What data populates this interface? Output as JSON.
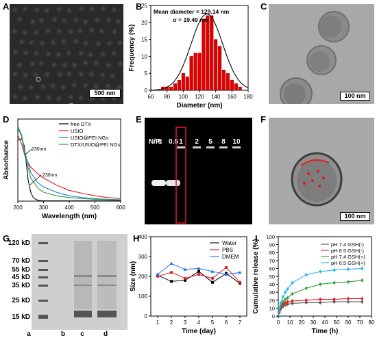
{
  "panels": {
    "A": {
      "label": "A",
      "scalebar": "500 nm"
    },
    "B": {
      "label": "B",
      "annotation_line1": "Mean diameter = 129.14 nm",
      "annotation_line2": "σ = 19.49 nm"
    },
    "C": {
      "label": "C",
      "scalebar": "100 nm"
    },
    "D": {
      "label": "D",
      "annot1": "230nm",
      "annot2": "230nm"
    },
    "E": {
      "label": "E",
      "np_label": "N/P:",
      "lanes": [
        "0",
        "0.5",
        "1",
        "2",
        "5",
        "8",
        "10"
      ]
    },
    "F": {
      "label": "F",
      "scalebar": "100 nm"
    },
    "G": {
      "label": "G",
      "markers": [
        "120 kD",
        "70 kD",
        "55 kD",
        "45 kD",
        "35 kD",
        "25 kD",
        "15 kD"
      ],
      "lanes": [
        "a",
        "b",
        "c",
        "d"
      ]
    },
    "H": {
      "label": "H"
    },
    "I": {
      "label": "I"
    }
  },
  "colors": {
    "red": "#e31a1c",
    "black": "#000000",
    "blue": "#1f77e8",
    "green": "#2ca02c",
    "cyan": "#22b8e8",
    "bar_red": "#e00000"
  },
  "chart_data": [
    {
      "id": "B",
      "type": "bar",
      "xlabel": "Diameter (nm)",
      "ylabel": "Frequency (%)",
      "xlim": [
        60,
        180
      ],
      "ylim": [
        0,
        25
      ],
      "xticks": [
        60,
        80,
        100,
        120,
        140,
        160,
        180
      ],
      "yticks": [
        0,
        5,
        10,
        15,
        20,
        25
      ],
      "x": [
        75,
        80,
        85,
        90,
        95,
        100,
        105,
        110,
        115,
        120,
        125,
        130,
        135,
        140,
        145,
        150,
        155,
        160,
        165,
        170
      ],
      "values": [
        1,
        1,
        1,
        2,
        3,
        5,
        4,
        10,
        11,
        11,
        21,
        22,
        22,
        15,
        13,
        6,
        5,
        3,
        2,
        1
      ],
      "fit": "gaussian",
      "fit_mean": 129.14,
      "fit_sigma": 19.49
    },
    {
      "id": "D",
      "type": "line",
      "xlabel": "Wavelength (nm)",
      "ylabel": "Absorbance",
      "xlim": [
        200,
        600
      ],
      "ylim": [
        0,
        2.3
      ],
      "xticks": [
        200,
        300,
        400,
        500,
        600
      ],
      "series": [
        {
          "name": "free DTX",
          "color": "#000000",
          "x": [
            200,
            215,
            225,
            230,
            240,
            250,
            260,
            270,
            280,
            300,
            600
          ],
          "y": [
            1.7,
            1.75,
            1.55,
            1.25,
            0.6,
            0.25,
            0.1,
            0.05,
            0.02,
            0.01,
            0.01
          ]
        },
        {
          "name": "USIO",
          "color": "#e31a1c",
          "x": [
            200,
            215,
            230,
            250,
            280,
            300,
            350,
            400,
            450,
            500,
            550,
            600
          ],
          "y": [
            1.85,
            1.6,
            1.2,
            0.95,
            0.75,
            0.65,
            0.45,
            0.3,
            0.22,
            0.15,
            0.1,
            0.07
          ]
        },
        {
          "name": "USIO@PEI NGs",
          "color": "#1f77e8",
          "x": [
            200,
            215,
            230,
            250,
            280,
            300,
            350,
            400,
            450,
            500,
            550,
            600
          ],
          "y": [
            2.1,
            1.85,
            1.3,
            0.8,
            0.5,
            0.4,
            0.25,
            0.15,
            0.1,
            0.07,
            0.05,
            0.04
          ]
        },
        {
          "name": "DTX/USIO@PEI NGs",
          "color": "#2ca02c",
          "x": [
            200,
            215,
            230,
            250,
            280,
            300,
            350,
            400,
            450,
            500,
            550,
            600
          ],
          "y": [
            2.05,
            1.8,
            1.2,
            0.65,
            0.35,
            0.25,
            0.15,
            0.1,
            0.07,
            0.05,
            0.04,
            0.03
          ]
        }
      ]
    },
    {
      "id": "H",
      "type": "line",
      "xlabel": "Time (day)",
      "ylabel": "Size (nm)",
      "xlim": [
        0.5,
        7.5
      ],
      "ylim": [
        0,
        400
      ],
      "xticks": [
        1,
        2,
        3,
        4,
        5,
        6,
        7
      ],
      "yticks": [
        0,
        100,
        200,
        300,
        400
      ],
      "x": [
        1,
        2,
        3,
        4,
        5,
        6,
        7
      ],
      "series": [
        {
          "name": "Water",
          "color": "#000000",
          "marker": "square",
          "values": [
            205,
            175,
            180,
            225,
            170,
            215,
            165
          ]
        },
        {
          "name": "PBS",
          "color": "#e31a1c",
          "marker": "circle",
          "values": [
            200,
            220,
            190,
            210,
            190,
            245,
            170
          ]
        },
        {
          "name": "DMEM",
          "color": "#1f77e8",
          "marker": "triangle",
          "values": [
            210,
            265,
            235,
            240,
            225,
            210,
            220
          ]
        }
      ]
    },
    {
      "id": "I",
      "type": "line",
      "xlabel": "Time (h)",
      "ylabel": "Cumulative release (%)",
      "xlim": [
        0,
        80
      ],
      "ylim": [
        0,
        100
      ],
      "xticks": [
        0,
        10,
        20,
        30,
        40,
        50,
        60,
        70,
        80
      ],
      "yticks": [
        0,
        10,
        20,
        30,
        40,
        50,
        60,
        70,
        80,
        90,
        100
      ],
      "x": [
        0,
        1,
        2,
        4,
        6,
        8,
        12,
        24,
        36,
        48,
        60,
        72
      ],
      "series": [
        {
          "name": "pH 7.4 GSH(-)",
          "color": "#555555",
          "values": [
            0,
            5,
            9,
            12,
            14,
            15,
            16,
            17,
            17,
            18,
            18,
            18
          ]
        },
        {
          "name": "pH 6.5 GSH(-)",
          "color": "#e31a1c",
          "values": [
            0,
            6,
            11,
            15,
            17,
            18,
            19,
            20,
            21,
            21,
            22,
            22
          ]
        },
        {
          "name": "pH 7.4 GSH(+)",
          "color": "#2ca02c",
          "values": [
            0,
            8,
            13,
            18,
            21,
            23,
            28,
            35,
            40,
            42,
            43,
            45
          ]
        },
        {
          "name": "pH 6.5 GSH(+)",
          "color": "#22b8e8",
          "values": [
            0,
            10,
            16,
            24,
            30,
            34,
            42,
            52,
            56,
            58,
            59,
            60
          ]
        }
      ]
    }
  ]
}
